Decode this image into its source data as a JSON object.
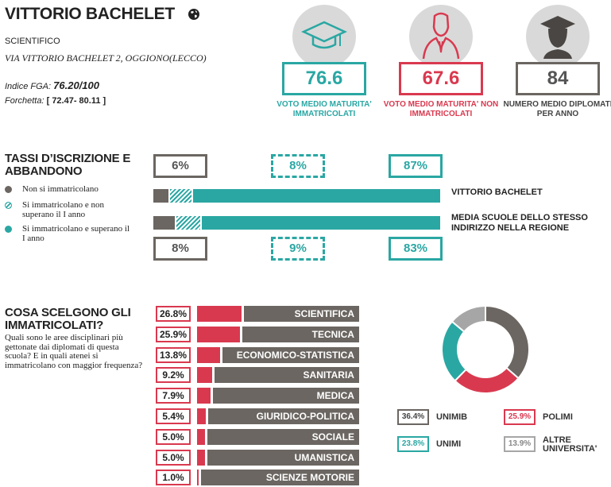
{
  "school": {
    "name": "VITTORIO BACHELET",
    "type": "SCIENTIFICO",
    "address": "VIA VITTORIO BACHELET 2, OGGIONO(LECCO)",
    "fga_label": "Indice FGA:",
    "fga_value": "76.20/100",
    "range_label": "Forchetta:",
    "range_value": "[ 72.47- 80.11 ]"
  },
  "kpis": [
    {
      "value": "76.6",
      "label": "VOTO MEDIO MATURITA' IMMATRICOLATI",
      "color": "#2aa7a3",
      "icon": "graduation-cap-icon"
    },
    {
      "value": "67.6",
      "label": "VOTO MEDIO MATURITA' NON IMMATRICOLATI",
      "color": "#d9394f",
      "icon": "person-icon"
    },
    {
      "value": "84",
      "label": "NUMERO MEDIO DIPLOMATI PER ANNO",
      "color": "#6b6661",
      "icon": "graduate-icon"
    }
  ],
  "enrollment": {
    "title_line1": "TASSI D’ISCRIZIONE E",
    "title_line2": "ABBANDONO",
    "legend": [
      {
        "label": "Non si immatricolano",
        "color": "#6b6661"
      },
      {
        "label": "Si immatricolano e non superano il I anno",
        "color": "#2aa7a3"
      },
      {
        "label": "Si immatricolano e superano il I anno",
        "color": "#2aa7a3"
      }
    ],
    "school_row": {
      "name": "VITTORIO BACHELET",
      "values": [
        6,
        8,
        87
      ],
      "labels": [
        "6%",
        "8%",
        "87%"
      ]
    },
    "region_row": {
      "name": "MEDIA SCUOLE DELLO STESSO INDIRIZZO NELLA REGIONE",
      "values": [
        8,
        9,
        83
      ],
      "labels": [
        "8%",
        "9%",
        "83%"
      ]
    }
  },
  "disciplines": {
    "title_line1": "COSA SCELGONO GLI",
    "title_line2": "IMMATRICOLATI?",
    "question": "Quali sono le aree disciplinari più gettonate dai diplomati di questa scuola? E in quali atenei si immatricolano con maggior frequenza?",
    "items": [
      {
        "name": "SCIENTIFICA",
        "value": 26.8,
        "label": "26.8%"
      },
      {
        "name": "TECNICA",
        "value": 25.9,
        "label": "25.9%"
      },
      {
        "name": "ECONOMICO-STATISTICA",
        "value": 13.8,
        "label": "13.8%"
      },
      {
        "name": "SANITARIA",
        "value": 9.2,
        "label": "9.2%"
      },
      {
        "name": "MEDICA",
        "value": 7.9,
        "label": "7.9%"
      },
      {
        "name": "GIURIDICO-POLITICA",
        "value": 5.4,
        "label": "5.4%"
      },
      {
        "name": "SOCIALE",
        "value": 5.0,
        "label": "5.0%"
      },
      {
        "name": "UMANISTICA",
        "value": 5.0,
        "label": "5.0%"
      },
      {
        "name": "SCIENZE MOTORIE",
        "value": 1.0,
        "label": "1.0%"
      }
    ]
  },
  "chart_data": {
    "type": "pie",
    "categories": [
      "UNIMIB",
      "POLIMI",
      "UNIMI",
      "ALTRE UNIVERSITA'"
    ],
    "values": [
      36.4,
      25.9,
      23.8,
      13.9
    ],
    "labels": [
      "36.4%",
      "25.9%",
      "23.8%",
      "13.9%"
    ],
    "colors": [
      "#6b6661",
      "#d9394f",
      "#2aa7a3",
      "#a6a6a6"
    ]
  }
}
